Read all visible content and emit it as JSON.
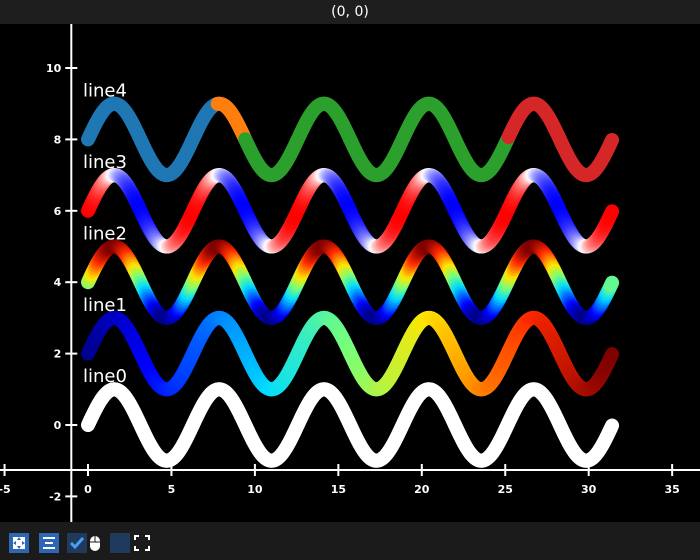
{
  "window": {
    "title": "(0, 0)"
  },
  "toolbar": {
    "buttons": [
      {
        "icon": "fit-icon",
        "checked": true
      },
      {
        "icon": "align-icon",
        "checked": true
      },
      {
        "icon": "checkmark-icon",
        "checked": true
      },
      {
        "icon": "mouse-icon"
      },
      {
        "icon": "blank-box"
      },
      {
        "icon": "fullscreen-icon"
      }
    ]
  },
  "chart_data": {
    "type": "line",
    "title": "",
    "xlabel": "",
    "ylabel": "",
    "xlim": [
      -5,
      37
    ],
    "ylim": [
      -2.7,
      11.2
    ],
    "x_ticks": [
      "-5",
      "0",
      "5",
      "10",
      "15",
      "20",
      "25",
      "30",
      "35"
    ],
    "y_ticks": [
      "-2",
      "0",
      "2",
      "4",
      "6",
      "8",
      "10"
    ],
    "x_range": [
      0,
      31.4
    ],
    "function": "sin(x) + offset",
    "grid": false,
    "series": [
      {
        "name": "line0",
        "offset": 0,
        "coloring": "solid",
        "color": "#ffffff"
      },
      {
        "name": "line1",
        "offset": 2,
        "coloring": "jet colormap along x"
      },
      {
        "name": "line2",
        "offset": 4,
        "coloring": "jet colormap by y value"
      },
      {
        "name": "line3",
        "offset": 6,
        "coloring": "blue-white-red colormap by slope"
      },
      {
        "name": "line4",
        "offset": 8,
        "coloring": "segments",
        "segments": [
          {
            "from": 0,
            "to": 7.8,
            "color": "#1f77b4"
          },
          {
            "from": 7.8,
            "to": 9.4,
            "color": "#ff7f0e"
          },
          {
            "from": 9.4,
            "to": 25.2,
            "color": "#2ca02c"
          },
          {
            "from": 25.2,
            "to": 31.4,
            "color": "#d62728"
          }
        ]
      }
    ]
  }
}
